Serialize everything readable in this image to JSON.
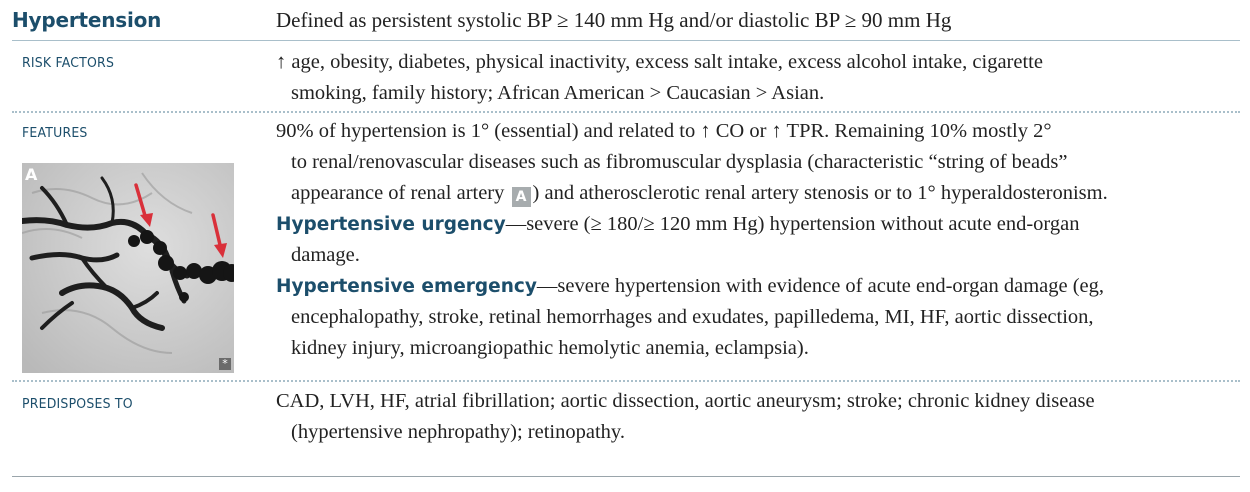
{
  "header": {
    "title": "Hypertension",
    "definition": "Defined as persistent systolic BP ≥ 140 mm Hg and/or diastolic BP ≥ 90 mm Hg"
  },
  "rows": {
    "risk_factors": {
      "label": "RISK FACTORS",
      "arrow": "↑",
      "line1": " age, obesity, diabetes, physical inactivity, excess salt intake, excess alcohol intake, cigarette",
      "line2": "smoking, family history; African American > Caucasian > Asian."
    },
    "features": {
      "label": "FEATURES",
      "p1_a": "90% of hypertension is 1° (essential) and related to ",
      "p1_arrow1": "↑",
      "p1_b": " CO or ",
      "p1_arrow2": "↑",
      "p1_c": " TPR. Remaining 10% mostly 2°",
      "p1_line2": "to renal/renovascular diseases such as fibromuscular dysplasia (characteristic “string of beads”",
      "p1_line3a": "appearance of renal artery ",
      "p1_badge": "A",
      "p1_line3b": ") and atherosclerotic renal artery stenosis or to 1° hyperaldosteronism.",
      "urgency_term": "Hypertensive urgency",
      "urgency_text": "—severe (≥ 180/≥ 120 mm Hg) hypertension without acute end-organ",
      "urgency_line2": "damage.",
      "emergency_term": "Hypertensive emergency",
      "emergency_text": "—severe hypertension with evidence of acute end-organ damage (eg,",
      "emergency_line2": "encephalopathy, stroke, retinal hemorrhages and exudates, papilledema, MI, HF, aortic dissection,",
      "emergency_line3": "kidney injury, microangiopathic hemolytic anemia, eclampsia).",
      "figure_letter": "A",
      "figure_mark": "*"
    },
    "predisposes_to": {
      "label": "PREDISPOSES TO",
      "line1": "CAD, LVH, HF, atrial fibrillation; aortic dissection, aortic aneurysm; stroke; chronic kidney disease",
      "line2": "(hypertensive nephropathy); retinopathy."
    }
  },
  "colors": {
    "heading": "#1c4e6b",
    "rule": "#a9bfca",
    "arrow_red": "#d9303a",
    "badge_gray": "#a7acae"
  }
}
